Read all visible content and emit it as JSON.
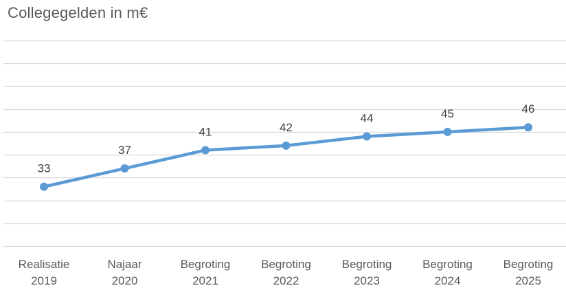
{
  "chart_data": {
    "type": "line",
    "title": "Collegegelden in m€",
    "categories": [
      [
        "Realisatie",
        "2019"
      ],
      [
        "Najaar",
        "2020"
      ],
      [
        "Begroting",
        "2021"
      ],
      [
        "Begroting",
        "2022"
      ],
      [
        "Begroting",
        "2023"
      ],
      [
        "Begroting",
        "2024"
      ],
      [
        "Begroting",
        "2025"
      ]
    ],
    "series": [
      {
        "values": [
          33,
          37,
          41,
          42,
          44,
          45,
          46
        ]
      }
    ],
    "data_labels": [
      "33",
      "37",
      "41",
      "42",
      "44",
      "45",
      "46"
    ],
    "ylim": [
      20,
      65
    ],
    "grid": true,
    "y_axis_labels_visible": false,
    "colors": {
      "line": "#5b9bd5",
      "grid": "#d9d9d9",
      "text": "#595959"
    }
  }
}
